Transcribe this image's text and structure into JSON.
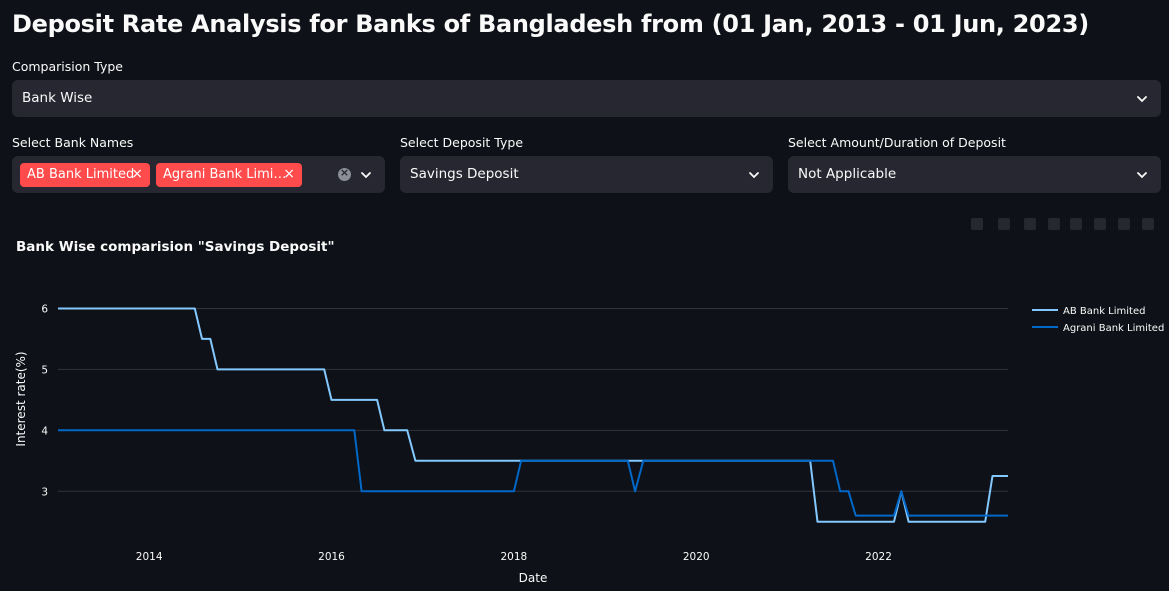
{
  "page": {
    "title": "Deposit Rate Analysis for Banks of Bangladesh from (01 Jan, 2013 - 01 Jun, 2023)"
  },
  "comparison": {
    "label": "Comparision Type",
    "value": "Bank Wise"
  },
  "bank_select": {
    "label": "Select Bank Names",
    "tags": [
      "AB Bank Limited",
      "Agrani Bank Limi…"
    ]
  },
  "deposit_type": {
    "label": "Select Deposit Type",
    "value": "Savings Deposit"
  },
  "amount_select": {
    "label": "Select Amount/Duration of Deposit",
    "value": "Not Applicable"
  },
  "chart_title": "Bank Wise comparision \"Savings Deposit\"",
  "colors": {
    "accent": "#ff4b4b",
    "series_ab": "#83c9ff",
    "series_agrani": "#0068c9",
    "background": "#0e1117",
    "input_bg": "#262730"
  },
  "icons": [
    "chevron-down-icon",
    "close-icon",
    "clear-icon"
  ],
  "chart_data": {
    "type": "line",
    "xlabel": "Date",
    "ylabel": "Interest rate(%)",
    "xlim": [
      2013.0,
      2023.42
    ],
    "ylim": [
      2.2,
      6.5
    ],
    "x_ticks": [
      "2014",
      "2016",
      "2018",
      "2020",
      "2022"
    ],
    "y_ticks": [
      "3",
      "4",
      "5",
      "6"
    ],
    "legend_position": "right",
    "series": [
      {
        "name": "AB Bank Limited",
        "color": "#83c9ff",
        "points": [
          [
            2013.0,
            6
          ],
          [
            2014.5,
            6
          ],
          [
            2014.58,
            5.5
          ],
          [
            2014.67,
            5.5
          ],
          [
            2014.75,
            5
          ],
          [
            2015.92,
            5
          ],
          [
            2016.0,
            4.5
          ],
          [
            2016.5,
            4.5
          ],
          [
            2016.58,
            4
          ],
          [
            2016.83,
            4
          ],
          [
            2016.92,
            3.5
          ],
          [
            2021.25,
            3.5
          ],
          [
            2021.33,
            2.5
          ],
          [
            2022.17,
            2.5
          ],
          [
            2022.25,
            3
          ],
          [
            2022.33,
            2.5
          ],
          [
            2023.17,
            2.5
          ],
          [
            2023.25,
            3.25
          ],
          [
            2023.42,
            3.25
          ]
        ]
      },
      {
        "name": "Agrani Bank Limited",
        "color": "#0068c9",
        "points": [
          [
            2013.0,
            4
          ],
          [
            2016.25,
            4
          ],
          [
            2016.33,
            3
          ],
          [
            2018.0,
            3
          ],
          [
            2018.08,
            3.5
          ],
          [
            2019.25,
            3.5
          ],
          [
            2019.33,
            3
          ],
          [
            2019.42,
            3.5
          ],
          [
            2021.5,
            3.5
          ],
          [
            2021.58,
            3
          ],
          [
            2021.67,
            3
          ],
          [
            2021.75,
            2.6
          ],
          [
            2022.17,
            2.6
          ],
          [
            2022.25,
            3
          ],
          [
            2022.33,
            2.6
          ],
          [
            2023.42,
            2.6
          ]
        ]
      }
    ]
  }
}
